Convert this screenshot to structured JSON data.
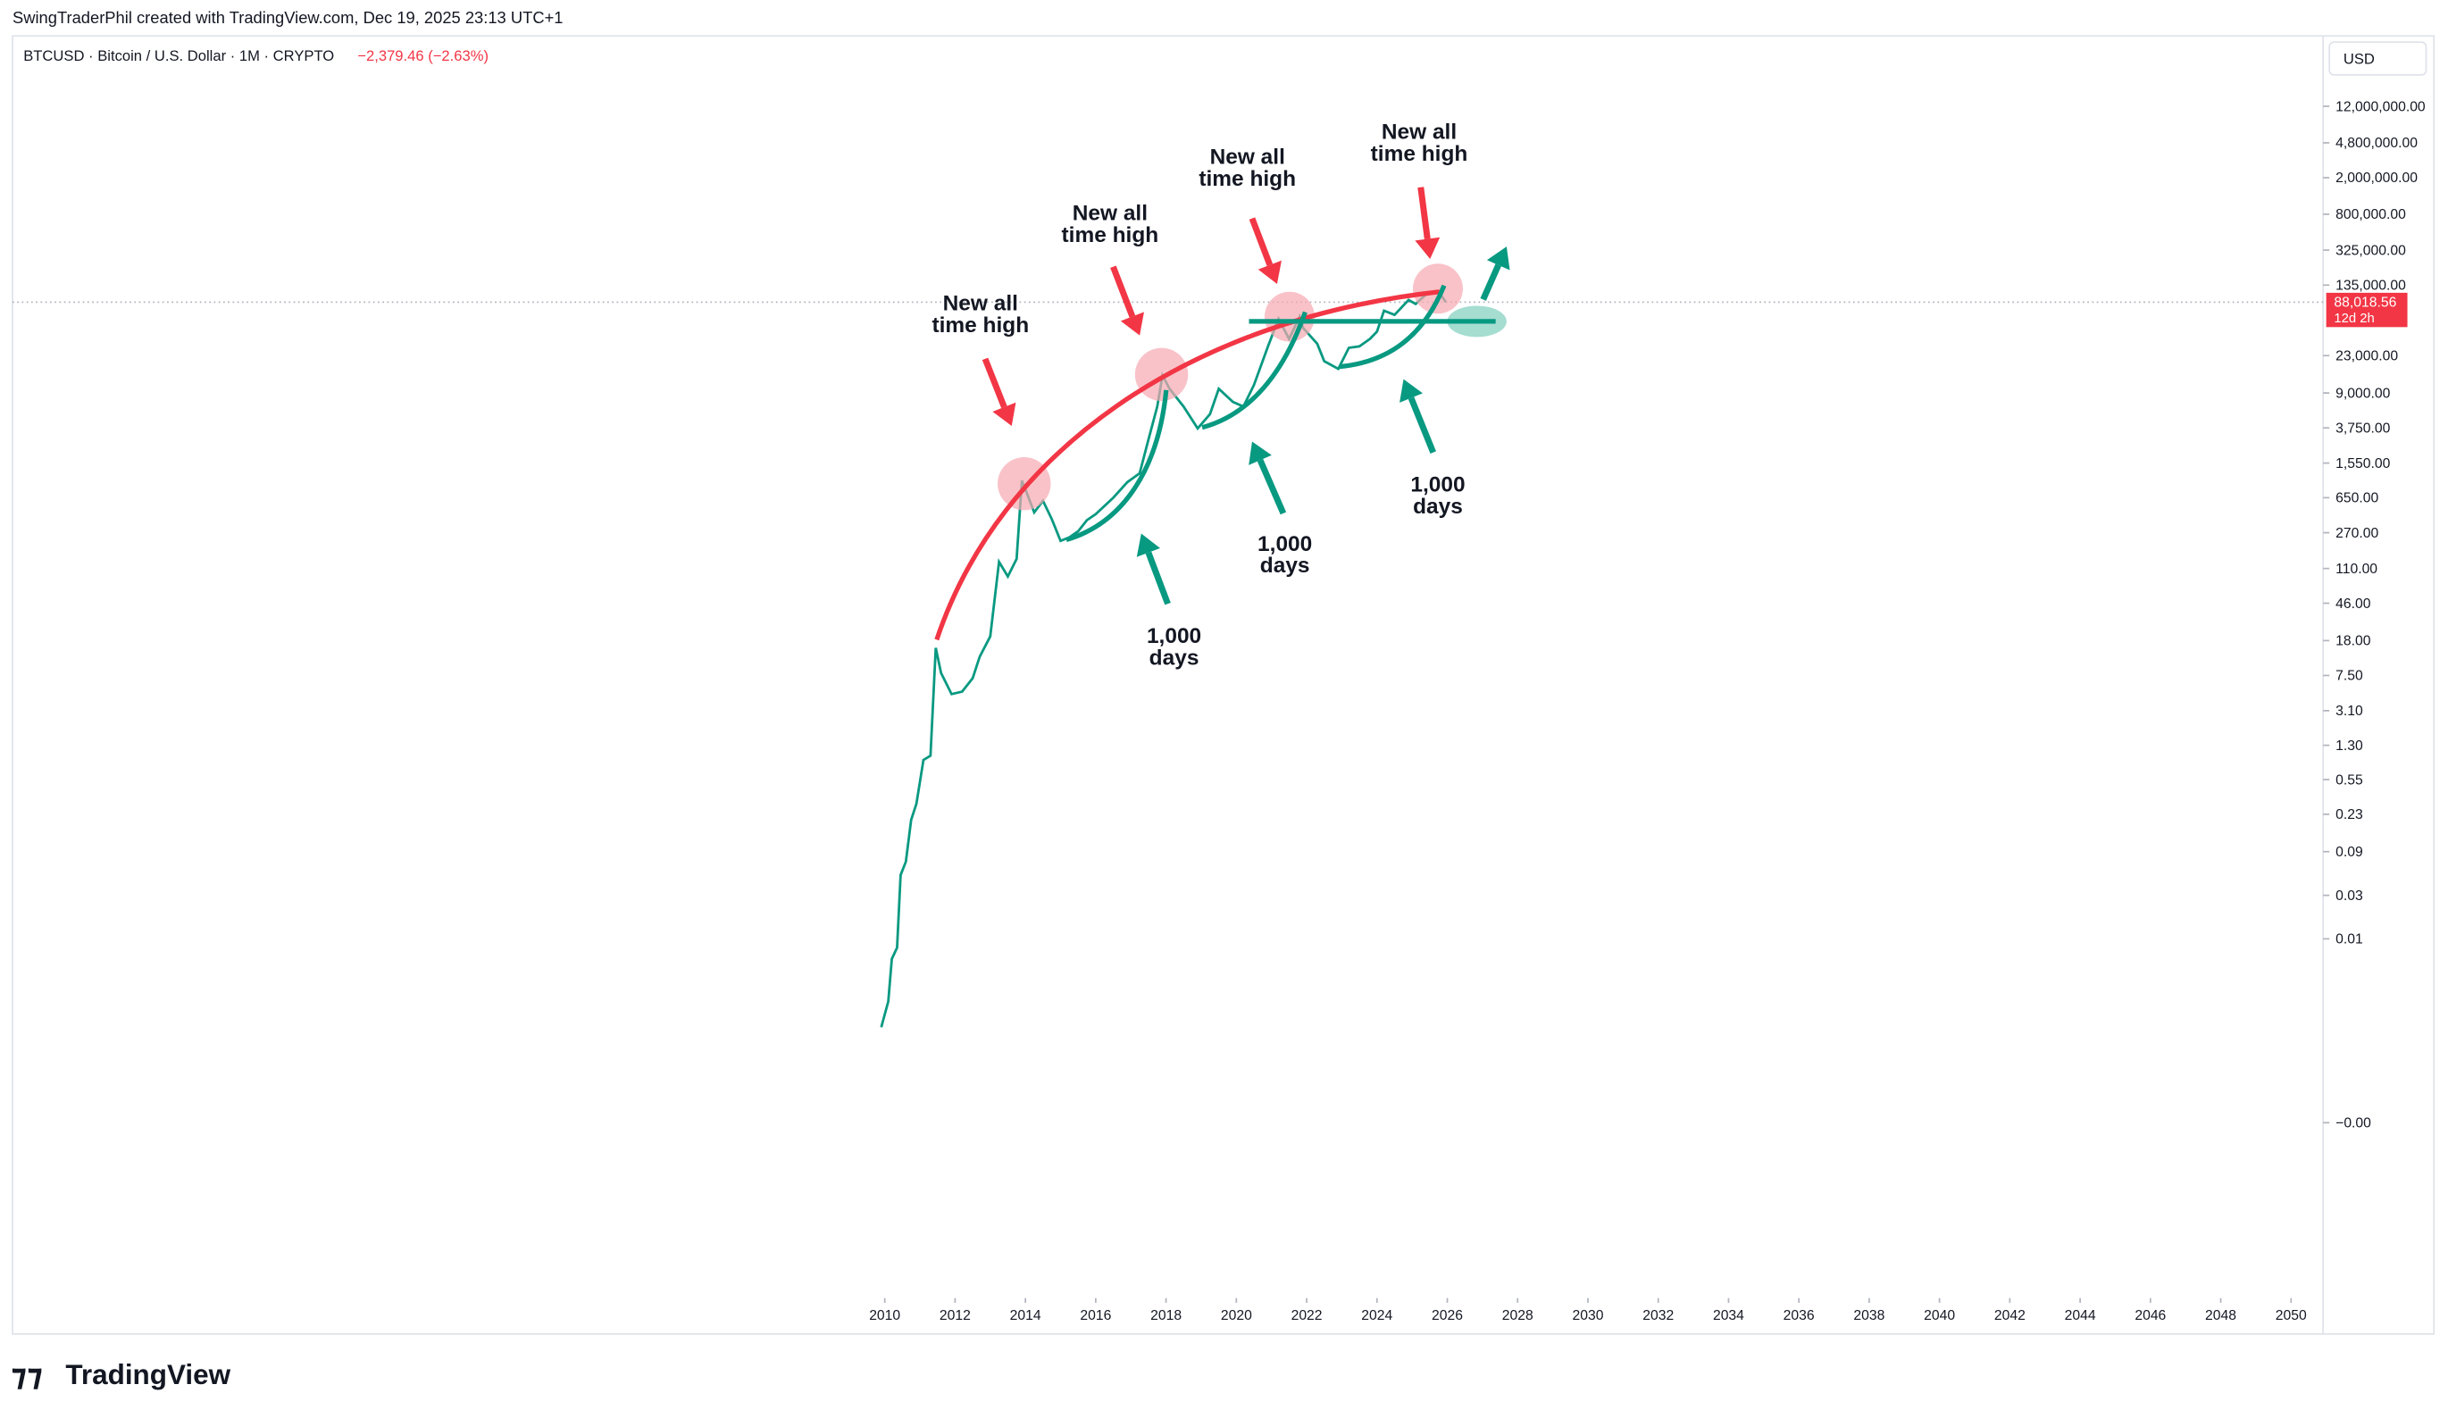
{
  "header": {
    "byline": "SwingTraderPhil created with TradingView.com, Dec 19, 2025 23:13 UTC+1",
    "symbol": "BTCUSD · Bitcoin / U.S. Dollar · 1M · CRYPTO",
    "change": "−2,379.46 (−2.63%)",
    "currency": "USD",
    "logo": "TradingView"
  },
  "chart_data": {
    "type": "line",
    "yscale": "log",
    "color": "#089981",
    "x": [
      2009.9,
      2010.1,
      2010.2,
      2010.35,
      2010.45,
      2010.6,
      2010.75,
      2010.9,
      2011.1,
      2011.3,
      2011.45,
      2011.6,
      2011.9,
      2012.2,
      2012.5,
      2012.7,
      2013.0,
      2013.25,
      2013.5,
      2013.75,
      2013.9,
      2014.0,
      2014.25,
      2014.5,
      2014.75,
      2015.0,
      2015.25,
      2015.5,
      2015.75,
      2016.0,
      2016.5,
      2016.9,
      2017.25,
      2017.5,
      2017.75,
      2017.9,
      2018.1,
      2018.5,
      2018.9,
      2019.25,
      2019.5,
      2019.9,
      2020.2,
      2020.5,
      2020.9,
      2021.2,
      2021.5,
      2021.8,
      2021.9,
      2022.3,
      2022.5,
      2022.9,
      2023.2,
      2023.5,
      2023.8,
      2024.0,
      2024.2,
      2024.5,
      2024.9,
      2025.1,
      2025.4,
      2025.75,
      2025.96
    ],
    "values": [
      0.001,
      0.002,
      0.006,
      0.008,
      0.05,
      0.07,
      0.2,
      0.3,
      0.9,
      1.0,
      15,
      8,
      4.7,
      5,
      7,
      12,
      20,
      130,
      90,
      140,
      1000,
      800,
      450,
      600,
      380,
      220,
      240,
      280,
      370,
      430,
      650,
      960,
      1200,
      2800,
      6400,
      14000,
      10000,
      6400,
      3700,
      5300,
      10000,
      7200,
      6400,
      11000,
      29000,
      58000,
      35000,
      61000,
      46000,
      31000,
      20000,
      16500,
      28000,
      29000,
      35000,
      42000,
      71000,
      64000,
      93000,
      84000,
      107000,
      114000,
      88018.56
    ],
    "xlim": [
      1985.1,
      2051
    ],
    "xticks": [
      2010,
      2012,
      2014,
      2016,
      2018,
      2020,
      2022,
      2024,
      2026,
      2028,
      2030,
      2032,
      2034,
      2036,
      2038,
      2040,
      2042,
      2044,
      2046,
      2048,
      2050
    ],
    "ylim": [
      -9e-05,
      50000000
    ],
    "yticks": [
      {
        "value": 12000000,
        "label": "12,000,000.00"
      },
      {
        "value": 4800000,
        "label": "4,800,000.00"
      },
      {
        "value": 2000000,
        "label": "2,000,000.00"
      },
      {
        "value": 800000,
        "label": "800,000.00"
      },
      {
        "value": 325000,
        "label": "325,000.00"
      },
      {
        "value": 135000,
        "label": "135,000.00"
      },
      {
        "value": 23000,
        "label": "23,000.00"
      },
      {
        "value": 9000,
        "label": "9,000.00"
      },
      {
        "value": 3750,
        "label": "3,750.00"
      },
      {
        "value": 1550,
        "label": "1,550.00"
      },
      {
        "value": 650,
        "label": "650.00"
      },
      {
        "value": 270,
        "label": "270.00"
      },
      {
        "value": 110,
        "label": "110.00"
      },
      {
        "value": 46,
        "label": "46.00"
      },
      {
        "value": 18,
        "label": "18.00"
      },
      {
        "value": 7.5,
        "label": "7.50"
      },
      {
        "value": 3.1,
        "label": "3.10"
      },
      {
        "value": 1.3,
        "label": "1.30"
      },
      {
        "value": 0.55,
        "label": "0.55"
      },
      {
        "value": 0.23,
        "label": "0.23"
      },
      {
        "value": 0.09,
        "label": "0.09"
      },
      {
        "value": 0.03,
        "label": "0.03"
      },
      {
        "value": 0.01,
        "label": "0.01"
      },
      {
        "value": 0,
        "label": "−0.00"
      }
    ],
    "last_price": {
      "value": 88018.56,
      "label": "88,018.56"
    },
    "countdown": "12d 2h",
    "annotations": [
      {
        "lines": [
          "New all",
          "time high"
        ]
      },
      {
        "lines": [
          "New all",
          "time high"
        ]
      },
      {
        "lines": [
          "New all",
          "time high"
        ]
      },
      {
        "lines": [
          "New all",
          "time high"
        ]
      },
      {
        "lines": [
          "1,000",
          "days"
        ]
      },
      {
        "lines": [
          "1,000",
          "days"
        ]
      },
      {
        "lines": [
          "1,000",
          "days"
        ]
      }
    ]
  }
}
